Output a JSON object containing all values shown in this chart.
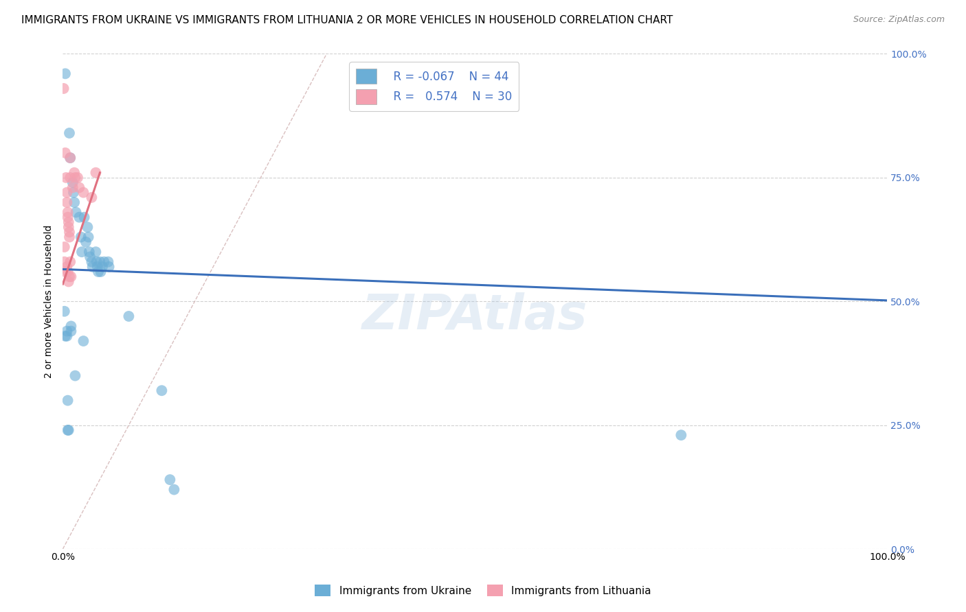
{
  "title": "IMMIGRANTS FROM UKRAINE VS IMMIGRANTS FROM LITHUANIA 2 OR MORE VEHICLES IN HOUSEHOLD CORRELATION CHART",
  "source": "Source: ZipAtlas.com",
  "ylabel": "2 or more Vehicles in Household",
  "xlim": [
    0,
    1.0
  ],
  "ylim": [
    0,
    1.0
  ],
  "ytick_vals": [
    0.0,
    0.25,
    0.5,
    0.75,
    1.0
  ],
  "ukraine_color": "#6baed6",
  "lithuania_color": "#f4a0b0",
  "ukraine_R": -0.067,
  "ukraine_N": 44,
  "lithuania_R": 0.574,
  "lithuania_N": 30,
  "ukraine_scatter": [
    [
      0.003,
      0.96
    ],
    [
      0.008,
      0.84
    ],
    [
      0.009,
      0.79
    ],
    [
      0.012,
      0.74
    ],
    [
      0.013,
      0.72
    ],
    [
      0.014,
      0.7
    ],
    [
      0.016,
      0.68
    ],
    [
      0.02,
      0.67
    ],
    [
      0.022,
      0.63
    ],
    [
      0.023,
      0.6
    ],
    [
      0.026,
      0.67
    ],
    [
      0.028,
      0.62
    ],
    [
      0.03,
      0.65
    ],
    [
      0.031,
      0.63
    ],
    [
      0.032,
      0.6
    ],
    [
      0.033,
      0.59
    ],
    [
      0.035,
      0.58
    ],
    [
      0.036,
      0.57
    ],
    [
      0.04,
      0.6
    ],
    [
      0.041,
      0.58
    ],
    [
      0.042,
      0.57
    ],
    [
      0.043,
      0.56
    ],
    [
      0.045,
      0.58
    ],
    [
      0.046,
      0.56
    ],
    [
      0.048,
      0.57
    ],
    [
      0.05,
      0.58
    ],
    [
      0.055,
      0.58
    ],
    [
      0.056,
      0.57
    ],
    [
      0.002,
      0.48
    ],
    [
      0.003,
      0.43
    ],
    [
      0.005,
      0.44
    ],
    [
      0.005,
      0.43
    ],
    [
      0.006,
      0.3
    ],
    [
      0.006,
      0.24
    ],
    [
      0.007,
      0.24
    ],
    [
      0.01,
      0.45
    ],
    [
      0.01,
      0.44
    ],
    [
      0.025,
      0.42
    ],
    [
      0.08,
      0.47
    ],
    [
      0.12,
      0.32
    ],
    [
      0.015,
      0.35
    ],
    [
      0.13,
      0.14
    ],
    [
      0.135,
      0.12
    ],
    [
      0.75,
      0.23
    ]
  ],
  "lithuania_scatter": [
    [
      0.001,
      0.93
    ],
    [
      0.003,
      0.8
    ],
    [
      0.004,
      0.75
    ],
    [
      0.005,
      0.72
    ],
    [
      0.005,
      0.7
    ],
    [
      0.006,
      0.68
    ],
    [
      0.006,
      0.67
    ],
    [
      0.007,
      0.66
    ],
    [
      0.007,
      0.65
    ],
    [
      0.008,
      0.64
    ],
    [
      0.008,
      0.63
    ],
    [
      0.009,
      0.79
    ],
    [
      0.009,
      0.75
    ],
    [
      0.012,
      0.73
    ],
    [
      0.014,
      0.76
    ],
    [
      0.015,
      0.75
    ],
    [
      0.018,
      0.75
    ],
    [
      0.02,
      0.73
    ],
    [
      0.025,
      0.72
    ],
    [
      0.035,
      0.71
    ],
    [
      0.04,
      0.76
    ],
    [
      0.005,
      0.57
    ],
    [
      0.006,
      0.56
    ],
    [
      0.007,
      0.54
    ],
    [
      0.008,
      0.55
    ],
    [
      0.009,
      0.58
    ],
    [
      0.01,
      0.55
    ],
    [
      0.002,
      0.61
    ],
    [
      0.002,
      0.58
    ],
    [
      0.003,
      0.56
    ]
  ],
  "ukraine_line_x": [
    0.0,
    1.0
  ],
  "ukraine_line_y": [
    0.565,
    0.502
  ],
  "lithuania_line_x": [
    0.0,
    0.045
  ],
  "lithuania_line_y": [
    0.535,
    0.76
  ],
  "ukraine_line_color": "#3a6fba",
  "lithuania_line_color": "#e07080",
  "ref_line_color": "#d0b0b0",
  "background_color": "#ffffff",
  "grid_color": "#d0d0d0",
  "title_fontsize": 11,
  "axis_label_fontsize": 10,
  "tick_fontsize": 10,
  "legend_fontsize": 12,
  "right_tick_color": "#4472c4"
}
